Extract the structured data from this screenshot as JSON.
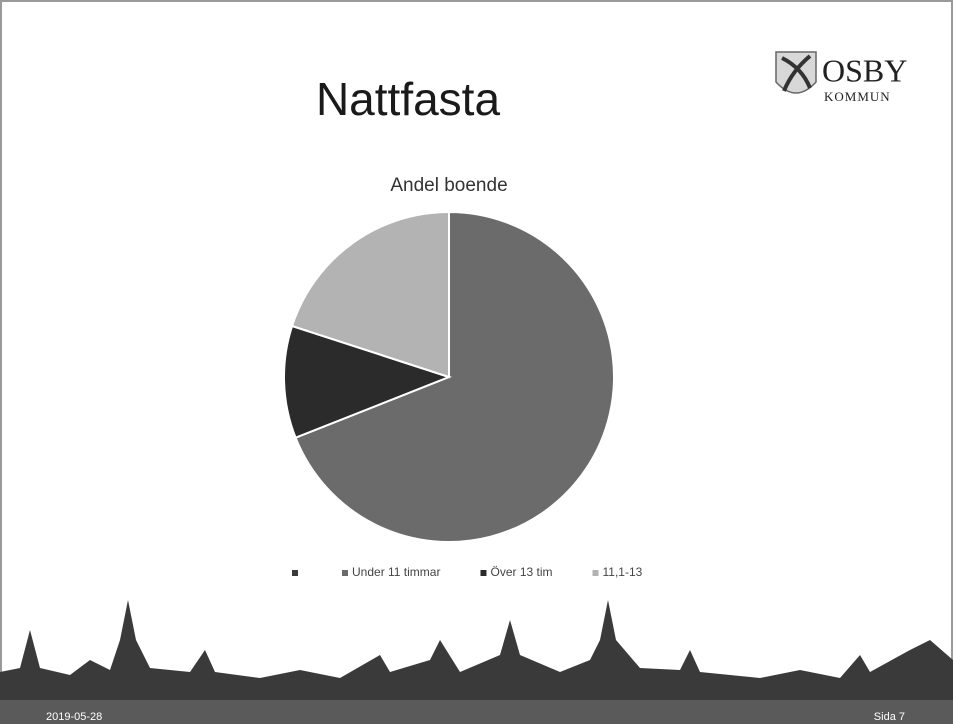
{
  "slide": {
    "title": "Nattfasta",
    "logo": {
      "name": "OSBY",
      "sub": "KOMMUN"
    },
    "date": "2019-05-28",
    "page": "Sida 7"
  },
  "chart_data": {
    "type": "pie",
    "title": "Andel boende",
    "categories": [
      null,
      "Under 11 timmar",
      "Över 13 tim",
      "11,1-13"
    ],
    "values": [
      0,
      69,
      11,
      20
    ],
    "colors": [
      "#3a3a3a",
      "#6b6b6b",
      "#2b2b2b",
      "#b3b3b3"
    ],
    "legend": "bottom"
  }
}
